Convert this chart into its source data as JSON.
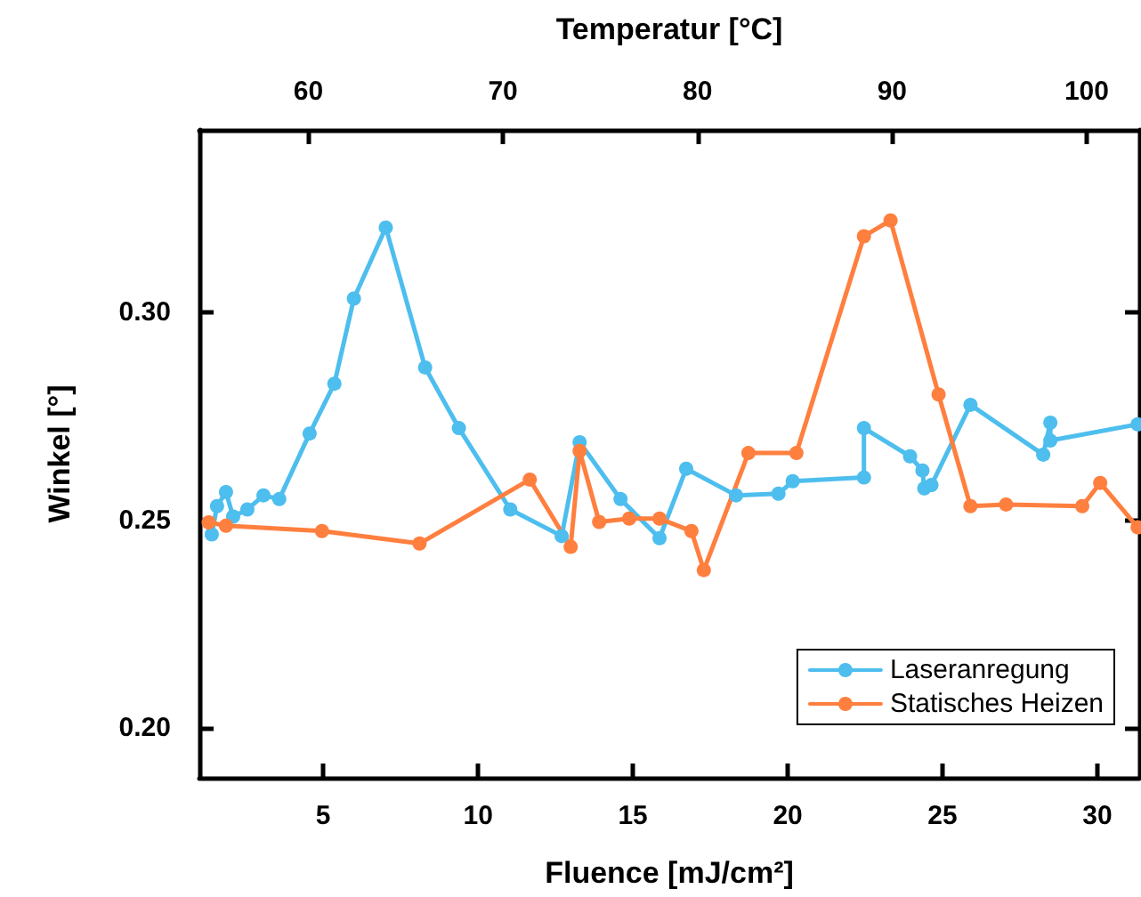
{
  "chart_data": {
    "type": "line",
    "xlabel": "Fluence [mJ/cm²]",
    "ylabel": "Winkel [°]",
    "x2label": "Temperatur [°C]",
    "xlim": [
      1,
      31.35
    ],
    "xticks": [
      5,
      10,
      15,
      20,
      25,
      30
    ],
    "x2lim": [
      54.4,
      102.7
    ],
    "x2ticks": [
      60,
      70,
      80,
      90,
      100
    ],
    "ylim": [
      0.188,
      0.344
    ],
    "yticks": [
      {
        "value": 0.2,
        "label": "0.20"
      },
      {
        "value": 0.25,
        "label": "0.25"
      },
      {
        "value": 0.3,
        "label": "0.30"
      }
    ],
    "grid": false,
    "legend": "bottom right",
    "marker": "circle",
    "line_style": "solid",
    "series": [
      {
        "name": "Laseranregung",
        "color": "#4dbeee",
        "x": [
          1.4,
          1.57,
          1.86,
          2.09,
          2.55,
          3.07,
          3.58,
          4.56,
          5.36,
          5.99,
          7.02,
          8.29,
          9.38,
          11.04,
          12.7,
          13.28,
          14.6,
          15.86,
          16.72,
          18.33,
          19.7,
          20.16,
          22.46,
          22.46,
          23.95,
          24.35,
          24.41,
          24.64,
          25.9,
          28.25,
          28.48,
          28.48,
          31.3
        ],
        "values": [
          0.2466,
          0.2534,
          0.2568,
          0.2509,
          0.2526,
          0.256,
          0.2551,
          0.2709,
          0.2829,
          0.3034,
          0.3205,
          0.2868,
          0.2722,
          0.2526,
          0.2462,
          0.2688,
          0.2551,
          0.2457,
          0.2624,
          0.256,
          0.2564,
          0.2594,
          0.2603,
          0.2722,
          0.2654,
          0.262,
          0.2577,
          0.2585,
          0.2778,
          0.2658,
          0.2735,
          0.2692,
          0.2731
        ]
      },
      {
        "name": "Statisches Heizen",
        "color": "#ff7f3f",
        "x": [
          1.3,
          1.86,
          4.96,
          8.11,
          11.67,
          12.99,
          13.28,
          13.91,
          14.88,
          15.86,
          16.89,
          17.29,
          18.73,
          20.28,
          22.46,
          23.32,
          24.87,
          25.9,
          27.05,
          29.51,
          30.09,
          31.3
        ],
        "values": [
          0.2495,
          0.2487,
          0.2474,
          0.2444,
          0.2598,
          0.2436,
          0.2667,
          0.2496,
          0.2504,
          0.2504,
          0.2474,
          0.238,
          0.2662,
          0.2662,
          0.3184,
          0.3222,
          0.2803,
          0.2534,
          0.2538,
          0.2534,
          0.259,
          0.2483
        ]
      }
    ]
  }
}
